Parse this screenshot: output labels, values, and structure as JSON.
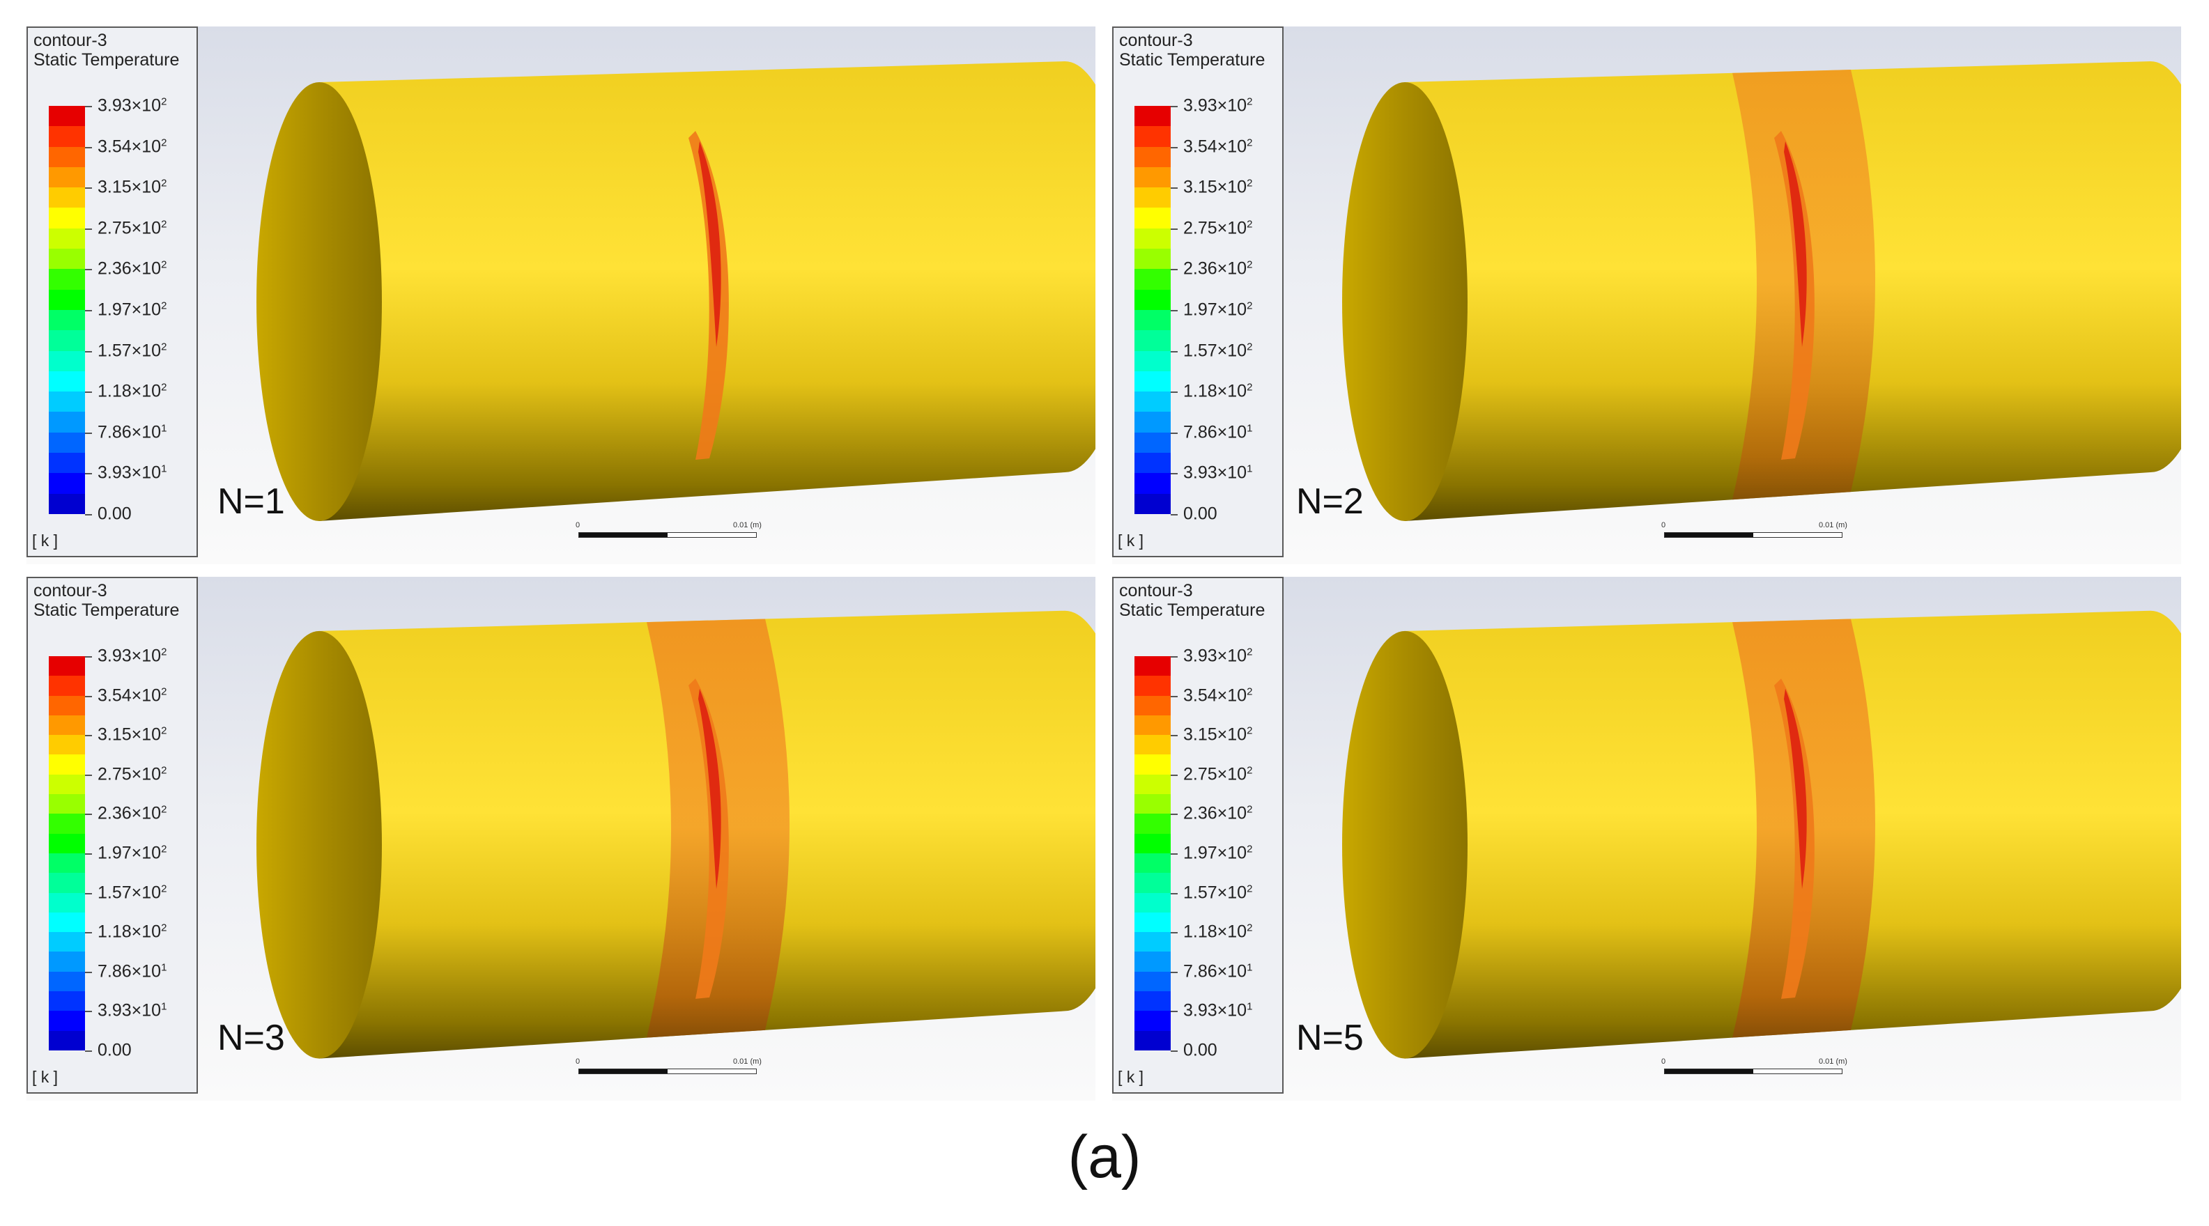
{
  "legend": {
    "title": "contour-3",
    "subtitle": "Static Temperature",
    "unit": "[ k ]",
    "ticks": [
      {
        "mant": "3.93",
        "exp": "2"
      },
      {
        "mant": "3.54",
        "exp": "2"
      },
      {
        "mant": "3.15",
        "exp": "2"
      },
      {
        "mant": "2.75",
        "exp": "2"
      },
      {
        "mant": "2.36",
        "exp": "2"
      },
      {
        "mant": "1.97",
        "exp": "2"
      },
      {
        "mant": "1.57",
        "exp": "2"
      },
      {
        "mant": "1.18",
        "exp": "2"
      },
      {
        "mant": "7.86",
        "exp": "1"
      },
      {
        "mant": "3.93",
        "exp": "1"
      },
      {
        "mant": "0.00",
        "exp": ""
      }
    ],
    "colors": [
      "#e60000",
      "#ff3300",
      "#ff6600",
      "#ff9900",
      "#ffcc00",
      "#ffff00",
      "#ccff00",
      "#99ff00",
      "#33ff00",
      "#00ff00",
      "#00ff66",
      "#00ff99",
      "#00ffcc",
      "#00ffff",
      "#00ccff",
      "#0099ff",
      "#0066ff",
      "#0033ff",
      "#0000ff",
      "#0000d0"
    ]
  },
  "scale": {
    "zero": "0",
    "max": "0.01 (m)"
  },
  "panels": [
    {
      "n_label": "N=1",
      "band_level": 0.0
    },
    {
      "n_label": "N=2",
      "band_level": 0.35
    },
    {
      "n_label": "N=3",
      "band_level": 0.55
    },
    {
      "n_label": "N=5",
      "band_level": 0.55
    }
  ],
  "colors": {
    "cylinder_base": "#e8c618",
    "cylinder_light": "#ffe236",
    "cylinder_dark": "#6b5a00",
    "hot": "#e02a10",
    "warm": "#f07a1a"
  },
  "caption": "(a)"
}
